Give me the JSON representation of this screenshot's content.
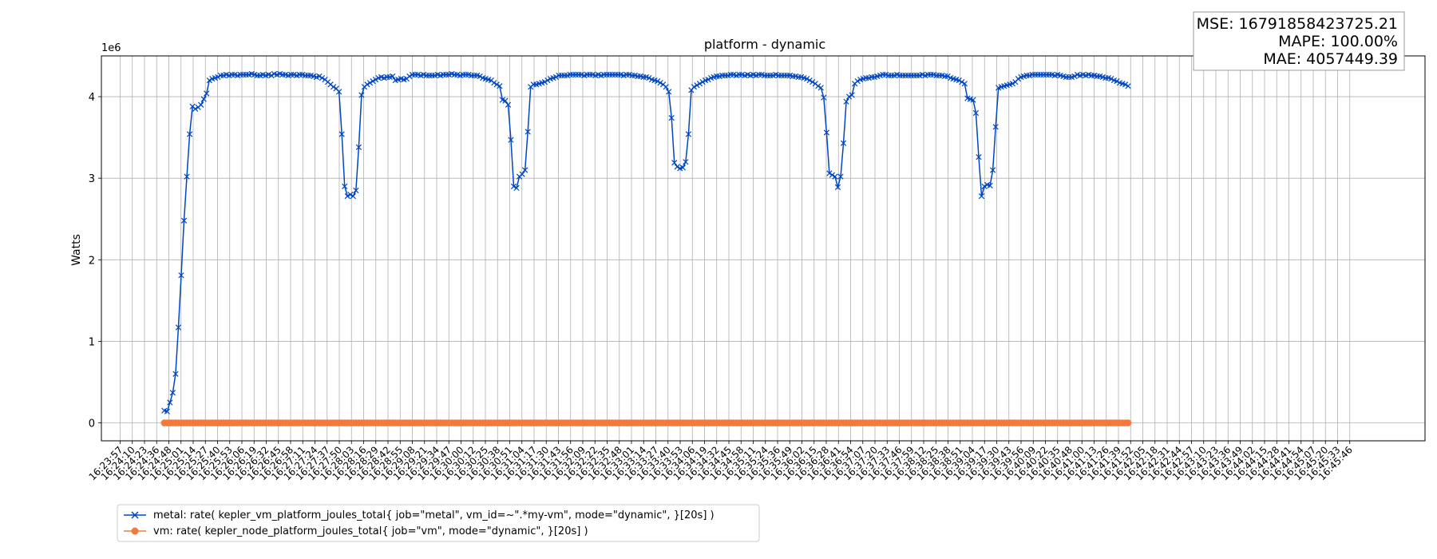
{
  "chart_data": {
    "type": "line",
    "title": "platform - dynamic",
    "xlabel": "",
    "ylabel": "Watts",
    "y_multiplier_label": "1e6",
    "ylim": [
      -0.22,
      4.5
    ],
    "yticks": [
      0,
      1,
      2,
      3,
      4
    ],
    "grid": true,
    "legend_position": "bottom-left, outside plot",
    "stats": {
      "mse": "MSE: 16791858423725.21",
      "mape": "MAPE: 100.00%",
      "mae": "MAE: 4057449.39"
    },
    "x_tick_labels": [
      "16:23:57",
      "16:24:10",
      "16:24:23",
      "16:24:36",
      "16:24:48",
      "16:25:01",
      "16:25:14",
      "16:25:27",
      "16:25:40",
      "16:25:53",
      "16:26:06",
      "16:26:19",
      "16:26:32",
      "16:26:45",
      "16:26:58",
      "16:27:11",
      "16:27:24",
      "16:27:37",
      "16:27:50",
      "16:28:03",
      "16:28:16",
      "16:28:29",
      "16:28:42",
      "16:28:55",
      "16:29:08",
      "16:29:21",
      "16:29:34",
      "16:29:47",
      "16:30:00",
      "16:30:12",
      "16:30:25",
      "16:30:38",
      "16:30:51",
      "16:31:04",
      "16:31:17",
      "16:31:30",
      "16:31:43",
      "16:31:56",
      "16:32:09",
      "16:32:22",
      "16:32:35",
      "16:32:48",
      "16:33:01",
      "16:33:14",
      "16:33:27",
      "16:33:40",
      "16:33:53",
      "16:34:06",
      "16:34:19",
      "16:34:32",
      "16:34:45",
      "16:34:58",
      "16:35:11",
      "16:35:24",
      "16:35:36",
      "16:35:49",
      "16:36:02",
      "16:36:15",
      "16:36:28",
      "16:36:41",
      "16:36:54",
      "16:37:07",
      "16:37:20",
      "16:37:33",
      "16:37:46",
      "16:37:59",
      "16:38:12",
      "16:38:25",
      "16:38:38",
      "16:38:51",
      "16:39:04",
      "16:39:17",
      "16:39:30",
      "16:39:43",
      "16:39:56",
      "16:40:09",
      "16:40:22",
      "16:40:35",
      "16:40:48",
      "16:41:00",
      "16:41:13",
      "16:41:26",
      "16:41:39",
      "16:41:52",
      "16:42:05",
      "16:42:18",
      "16:42:31",
      "16:42:44",
      "16:42:57",
      "16:43:10",
      "16:43:23",
      "16:43:36",
      "16:43:49",
      "16:44:02",
      "16:44:15",
      "16:44:28",
      "16:44:41",
      "16:44:54",
      "16:45:07",
      "16:45:20",
      "16:45:33",
      "16:45:46"
    ],
    "x_point_start": "16:24:44",
    "x_point_step_seconds": 3,
    "series": [
      {
        "name": "metal: rate( kepler_vm_platform_joules_total{ job=\"metal\", vm_id=~\".*my-vm\", mode=\"dynamic\", }[20s] )",
        "color": "#0047c2",
        "marker": "x",
        "values": [
          0.15,
          0.14,
          0.25,
          0.37,
          0.6,
          1.17,
          1.81,
          2.48,
          3.02,
          3.54,
          3.88,
          3.85,
          3.87,
          3.9,
          3.97,
          4.04,
          4.2,
          4.22,
          4.23,
          4.24,
          4.26,
          4.26,
          4.27,
          4.26,
          4.27,
          4.27,
          4.26,
          4.27,
          4.27,
          4.27,
          4.27,
          4.28,
          4.27,
          4.26,
          4.26,
          4.27,
          4.26,
          4.27,
          4.26,
          4.28,
          4.27,
          4.28,
          4.27,
          4.27,
          4.26,
          4.27,
          4.27,
          4.26,
          4.27,
          4.27,
          4.26,
          4.26,
          4.26,
          4.25,
          4.24,
          4.25,
          4.23,
          4.21,
          4.18,
          4.15,
          4.12,
          4.1,
          4.06,
          3.54,
          2.9,
          2.78,
          2.8,
          2.78,
          2.85,
          3.38,
          4.02,
          4.12,
          4.15,
          4.17,
          4.19,
          4.21,
          4.23,
          4.24,
          4.23,
          4.24,
          4.24,
          4.25,
          4.2,
          4.21,
          4.22,
          4.21,
          4.22,
          4.25,
          4.27,
          4.27,
          4.27,
          4.26,
          4.27,
          4.26,
          4.26,
          4.26,
          4.26,
          4.27,
          4.26,
          4.27,
          4.27,
          4.27,
          4.28,
          4.27,
          4.27,
          4.26,
          4.27,
          4.27,
          4.27,
          4.26,
          4.26,
          4.26,
          4.25,
          4.23,
          4.22,
          4.21,
          4.2,
          4.17,
          4.15,
          4.13,
          3.96,
          3.95,
          3.9,
          3.47,
          2.9,
          2.88,
          3.02,
          3.05,
          3.1,
          3.57,
          4.12,
          4.15,
          4.15,
          4.16,
          4.17,
          4.18,
          4.2,
          4.22,
          4.23,
          4.24,
          4.26,
          4.26,
          4.26,
          4.26,
          4.27,
          4.27,
          4.27,
          4.27,
          4.27,
          4.26,
          4.27,
          4.27,
          4.27,
          4.26,
          4.27,
          4.26,
          4.27,
          4.27,
          4.27,
          4.27,
          4.27,
          4.27,
          4.27,
          4.26,
          4.27,
          4.27,
          4.26,
          4.26,
          4.25,
          4.25,
          4.24,
          4.24,
          4.23,
          4.21,
          4.2,
          4.19,
          4.17,
          4.15,
          4.12,
          4.06,
          3.74,
          3.19,
          3.14,
          3.12,
          3.13,
          3.2,
          3.54,
          4.08,
          4.12,
          4.14,
          4.16,
          4.18,
          4.2,
          4.21,
          4.23,
          4.24,
          4.25,
          4.25,
          4.26,
          4.26,
          4.26,
          4.27,
          4.27,
          4.26,
          4.27,
          4.27,
          4.26,
          4.27,
          4.26,
          4.27,
          4.26,
          4.27,
          4.27,
          4.26,
          4.26,
          4.26,
          4.26,
          4.27,
          4.26,
          4.26,
          4.26,
          4.26,
          4.26,
          4.25,
          4.25,
          4.24,
          4.24,
          4.23,
          4.22,
          4.2,
          4.18,
          4.16,
          4.13,
          4.11,
          3.99,
          3.56,
          3.06,
          3.04,
          3.02,
          2.89,
          3.02,
          3.43,
          3.94,
          4.0,
          4.02,
          4.16,
          4.19,
          4.21,
          4.22,
          4.23,
          4.23,
          4.24,
          4.24,
          4.25,
          4.26,
          4.27,
          4.27,
          4.26,
          4.26,
          4.26,
          4.27,
          4.26,
          4.26,
          4.26,
          4.26,
          4.26,
          4.26,
          4.26,
          4.26,
          4.27,
          4.26,
          4.27,
          4.27,
          4.27,
          4.26,
          4.26,
          4.26,
          4.25,
          4.25,
          4.23,
          4.22,
          4.21,
          4.2,
          4.18,
          4.16,
          3.98,
          3.97,
          3.96,
          3.8,
          3.26,
          2.78,
          2.9,
          2.92,
          2.91,
          3.1,
          3.63,
          4.11,
          4.12,
          4.13,
          4.14,
          4.15,
          4.16,
          4.18,
          4.22,
          4.24,
          4.25,
          4.26,
          4.26,
          4.27,
          4.27,
          4.27,
          4.27,
          4.27,
          4.27,
          4.27,
          4.27,
          4.26,
          4.27,
          4.26,
          4.25,
          4.24,
          4.24,
          4.24,
          4.25,
          4.27,
          4.26,
          4.27,
          4.26,
          4.27,
          4.26,
          4.26,
          4.25,
          4.25,
          4.24,
          4.23,
          4.23,
          4.22,
          4.2,
          4.19,
          4.17,
          4.16,
          4.15,
          4.13
        ]
      },
      {
        "name": "vm: rate( kepler_node_platform_joules_total{ job=\"vm\", mode=\"dynamic\", }[20s] )",
        "color": "#f5793a",
        "marker": "o",
        "constant_value": 0
      }
    ]
  }
}
